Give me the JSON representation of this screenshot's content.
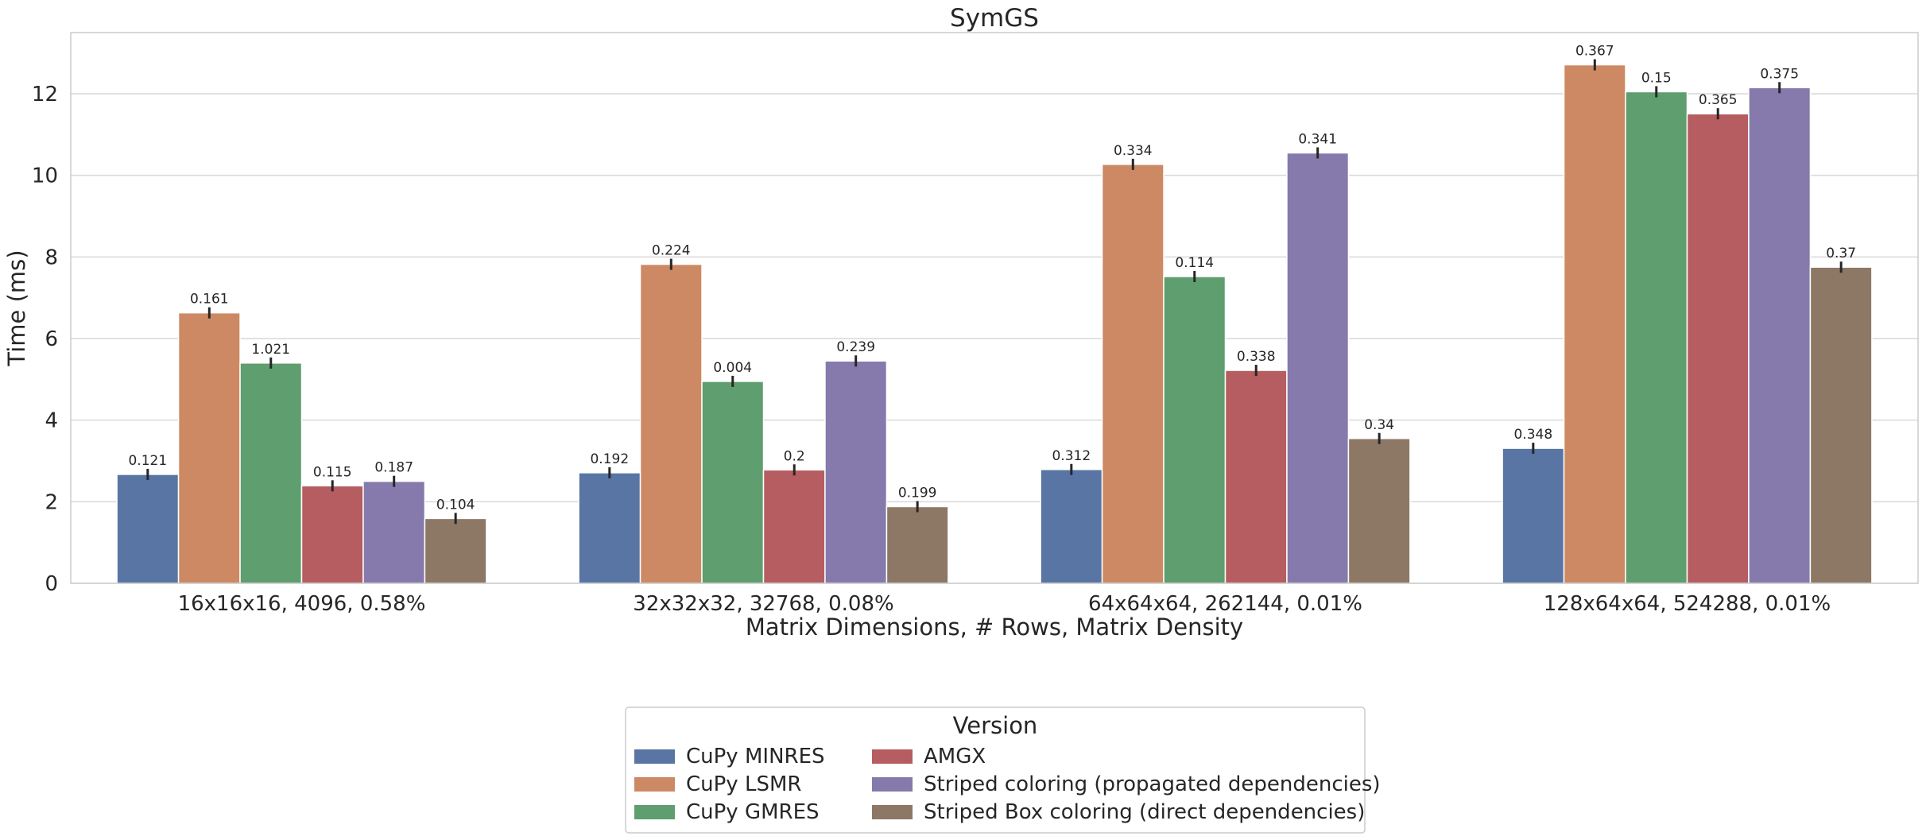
{
  "chart_data": {
    "type": "bar",
    "title": "SymGS",
    "xlabel": "Matrix Dimensions, # Rows, Matrix Density",
    "ylabel": "Time (ms)",
    "ylim": [
      0,
      13.5
    ],
    "yticks": [
      0,
      2,
      4,
      6,
      8,
      10,
      12
    ],
    "grid": true,
    "categories": [
      "16x16x16, 4096, 0.58%",
      "32x32x32, 32768, 0.08%",
      "64x64x64, 262144, 0.01%",
      "128x64x64, 524288, 0.01%"
    ],
    "legend": {
      "title": "Version",
      "position": "bottom-center"
    },
    "series": [
      {
        "name": "CuPy MINRES",
        "color": "#5875a4",
        "values": [
          2.67,
          2.71,
          2.79,
          3.31
        ],
        "labels": [
          "0.121",
          "0.192",
          "0.312",
          "0.348"
        ]
      },
      {
        "name": "CuPy LSMR",
        "color": "#cc8963",
        "values": [
          6.63,
          7.82,
          10.27,
          12.71
        ],
        "labels": [
          "0.161",
          "0.224",
          "0.334",
          "0.367"
        ]
      },
      {
        "name": "CuPy GMRES",
        "color": "#5f9e6e",
        "values": [
          5.4,
          4.95,
          7.52,
          12.05
        ],
        "labels": [
          "1.021",
          "0.004",
          "0.114",
          "0.15"
        ]
      },
      {
        "name": "AMGX",
        "color": "#b55d60",
        "values": [
          2.39,
          2.78,
          5.22,
          11.51
        ],
        "labels": [
          "0.115",
          "0.2",
          "0.338",
          "0.365"
        ]
      },
      {
        "name": "Striped coloring (propagated dependencies)",
        "color": "#857aab",
        "values": [
          2.5,
          5.45,
          10.55,
          12.15
        ],
        "labels": [
          "0.187",
          "0.239",
          "0.341",
          "0.375"
        ]
      },
      {
        "name": "Striped Box coloring (direct dependencies)",
        "color": "#8d7866",
        "values": [
          1.59,
          1.88,
          3.55,
          7.75
        ],
        "labels": [
          "0.104",
          "0.199",
          "0.34",
          "0.37"
        ]
      }
    ]
  }
}
